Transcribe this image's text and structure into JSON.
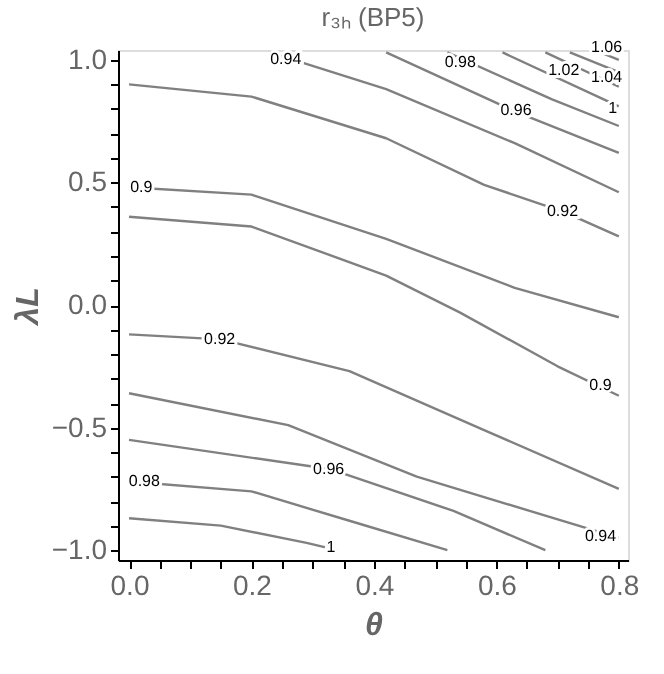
{
  "chart_data": {
    "type": "line",
    "title": "r₃ₕ (BP5)",
    "xlabel": "θ",
    "ylabel": "λL",
    "xlim": [
      -0.018,
      0.815
    ],
    "ylim": [
      -1.04,
      1.04
    ],
    "xticks": [
      {
        "value": 0,
        "label": "0.0"
      },
      {
        "value": 0.05,
        "label": null
      },
      {
        "value": 0.1,
        "label": null
      },
      {
        "value": 0.15,
        "label": null
      },
      {
        "value": 0.2,
        "label": "0.2"
      },
      {
        "value": 0.25,
        "label": null
      },
      {
        "value": 0.3,
        "label": null
      },
      {
        "value": 0.35,
        "label": null
      },
      {
        "value": 0.4,
        "label": "0.4"
      },
      {
        "value": 0.45,
        "label": null
      },
      {
        "value": 0.5,
        "label": null
      },
      {
        "value": 0.55,
        "label": null
      },
      {
        "value": 0.6,
        "label": "0.6"
      },
      {
        "value": 0.65,
        "label": null
      },
      {
        "value": 0.7,
        "label": null
      },
      {
        "value": 0.75,
        "label": null
      },
      {
        "value": 0.8,
        "label": "0.8"
      }
    ],
    "yticks": [
      {
        "value": -1,
        "label": "−1.0"
      },
      {
        "value": -0.9,
        "label": null
      },
      {
        "value": -0.8,
        "label": null
      },
      {
        "value": -0.7,
        "label": null
      },
      {
        "value": -0.6,
        "label": null
      },
      {
        "value": -0.5,
        "label": "−0.5"
      },
      {
        "value": -0.4,
        "label": null
      },
      {
        "value": -0.3,
        "label": null
      },
      {
        "value": -0.2,
        "label": null
      },
      {
        "value": -0.1,
        "label": null
      },
      {
        "value": 0,
        "label": "0.0"
      },
      {
        "value": 0.1,
        "label": null
      },
      {
        "value": 0.2,
        "label": null
      },
      {
        "value": 0.3,
        "label": null
      },
      {
        "value": 0.4,
        "label": null
      },
      {
        "value": 0.5,
        "label": "0.5"
      },
      {
        "value": 0.6,
        "label": null
      },
      {
        "value": 0.7,
        "label": null
      },
      {
        "value": 0.8,
        "label": null
      },
      {
        "value": 0.9,
        "label": null
      },
      {
        "value": 1,
        "label": "1.0"
      }
    ],
    "grid": false,
    "line_style": "solid",
    "series": [
      {
        "color": "#808080",
        "x": [
          0.76,
          0.8
        ],
        "values": [
          1.04,
          1.0
        ]
      },
      {
        "color": "#808080",
        "x": [
          0.72,
          0.8
        ],
        "values": [
          1.03,
          0.95
        ]
      },
      {
        "color": "#808080",
        "x": [
          0.68,
          0.8
        ],
        "values": [
          1.03,
          0.89
        ]
      },
      {
        "color": "#808080",
        "x": [
          0.61,
          0.8
        ],
        "values": [
          1.03,
          0.81
        ]
      },
      {
        "color": "#808080",
        "x": [
          0.52,
          0.69,
          0.8
        ],
        "values": [
          1.03,
          0.84,
          0.73
        ]
      },
      {
        "color": "#808080",
        "x": [
          0.42,
          0.63,
          0.8
        ],
        "values": [
          1.03,
          0.79,
          0.62
        ]
      },
      {
        "color": "#808080",
        "x": [
          0.23,
          0.42,
          0.63,
          0.8
        ],
        "values": [
          1.03,
          0.88,
          0.66,
          0.46
        ]
      },
      {
        "color": "#808080",
        "x": [
          0,
          0.2,
          0.42,
          0.58,
          0.71,
          0.8
        ],
        "values": [
          0.9,
          0.85,
          0.68,
          0.49,
          0.38,
          0.28
        ]
      },
      {
        "color": "#808080",
        "x": [
          0,
          0.2,
          0.42,
          0.63,
          0.8
        ],
        "values": [
          0.48,
          0.45,
          0.27,
          0.07,
          -0.05
        ]
      },
      {
        "color": "#808080",
        "x": [
          0,
          0.2,
          0.42,
          0.54,
          0.7,
          0.8
        ],
        "values": [
          0.36,
          0.32,
          0.12,
          -0.03,
          -0.25,
          -0.37
        ]
      },
      {
        "color": "#808080",
        "x": [
          0,
          0.15,
          0.36,
          0.58,
          0.8
        ],
        "values": [
          -0.12,
          -0.14,
          -0.27,
          -0.51,
          -0.75
        ]
      },
      {
        "color": "#808080",
        "x": [
          0,
          0.26,
          0.47,
          0.8
        ],
        "values": [
          -0.36,
          -0.49,
          -0.7,
          -0.95
        ]
      },
      {
        "color": "#808080",
        "x": [
          0,
          0.33,
          0.53,
          0.68
        ],
        "values": [
          -0.55,
          -0.67,
          -0.84,
          -1.0
        ]
      },
      {
        "color": "#808080",
        "x": [
          0,
          0.2,
          0.36,
          0.52
        ],
        "values": [
          -0.72,
          -0.76,
          -0.88,
          -1.0
        ]
      },
      {
        "color": "#808080",
        "x": [
          0,
          0.15,
          0.29,
          0.34
        ],
        "values": [
          -0.87,
          -0.9,
          -0.97,
          -1.0
        ]
      }
    ],
    "annotations": [
      {
        "text": "1.06",
        "x": 0.78,
        "y": 1.05
      },
      {
        "text": "1.04",
        "x": 0.78,
        "y": 0.925
      },
      {
        "text": "1.02",
        "x": 0.71,
        "y": 0.955
      },
      {
        "text": "1",
        "x": 0.79,
        "y": 0.8
      },
      {
        "text": "0.98",
        "x": 0.541,
        "y": 0.985
      },
      {
        "text": "0.96",
        "x": 0.632,
        "y": 0.79
      },
      {
        "text": "0.94",
        "x": 0.256,
        "y": 0.999
      },
      {
        "text": "0.92",
        "x": 0.708,
        "y": 0.378
      },
      {
        "text": "0.9",
        "x": 0.02,
        "y": 0.478
      },
      {
        "text": "0.92",
        "x": 0.148,
        "y": -0.142
      },
      {
        "text": "0.9",
        "x": 0.77,
        "y": -0.33
      },
      {
        "text": "0.96",
        "x": 0.326,
        "y": -0.671
      },
      {
        "text": "0.98",
        "x": 0.025,
        "y": -0.722
      },
      {
        "text": "0.94",
        "x": 0.77,
        "y": -0.946
      },
      {
        "text": "1",
        "x": 0.33,
        "y": -0.99
      }
    ]
  }
}
